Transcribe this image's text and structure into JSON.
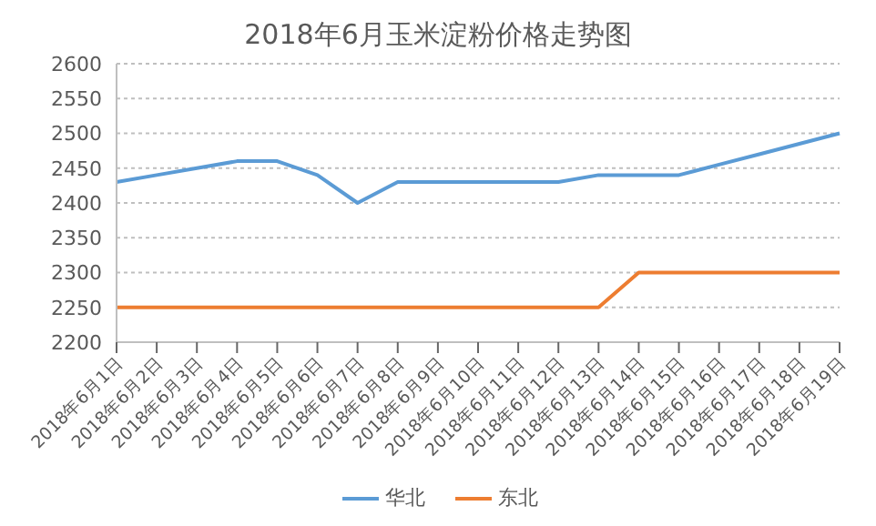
{
  "chart_data": {
    "type": "line",
    "title": "2018年6月玉米淀粉价格走势图",
    "categories": [
      "2018年6月1日",
      "2018年6月2日",
      "2018年6月3日",
      "2018年6月4日",
      "2018年6月5日",
      "2018年6月6日",
      "2018年6月7日",
      "2018年6月8日",
      "2018年6月9日",
      "2018年6月10日",
      "2018年6月11日",
      "2018年6月12日",
      "2018年6月13日",
      "2018年6月14日",
      "2018年6月15日",
      "2018年6月16日",
      "2018年6月17日",
      "2018年6月18日",
      "2018年6月19日"
    ],
    "series": [
      {
        "name": "华北",
        "color": "#5b9bd5",
        "values": [
          2430,
          2440,
          2450,
          2460,
          2460,
          2440,
          2400,
          2430,
          2430,
          2430,
          2430,
          2430,
          2440,
          2440,
          2440,
          2455,
          2470,
          2485,
          2500
        ]
      },
      {
        "name": "东北",
        "color": "#ed7d31",
        "values": [
          2250,
          2250,
          2250,
          2250,
          2250,
          2250,
          2250,
          2250,
          2250,
          2250,
          2250,
          2250,
          2250,
          2300,
          2300,
          2300,
          2300,
          2300,
          2300
        ]
      }
    ],
    "ylim": [
      2200,
      2600
    ],
    "yticks": [
      2200,
      2250,
      2300,
      2350,
      2400,
      2450,
      2500,
      2550,
      2600
    ],
    "grid": "y",
    "legend": "bottom",
    "marker": "none",
    "line_style": "solid"
  }
}
